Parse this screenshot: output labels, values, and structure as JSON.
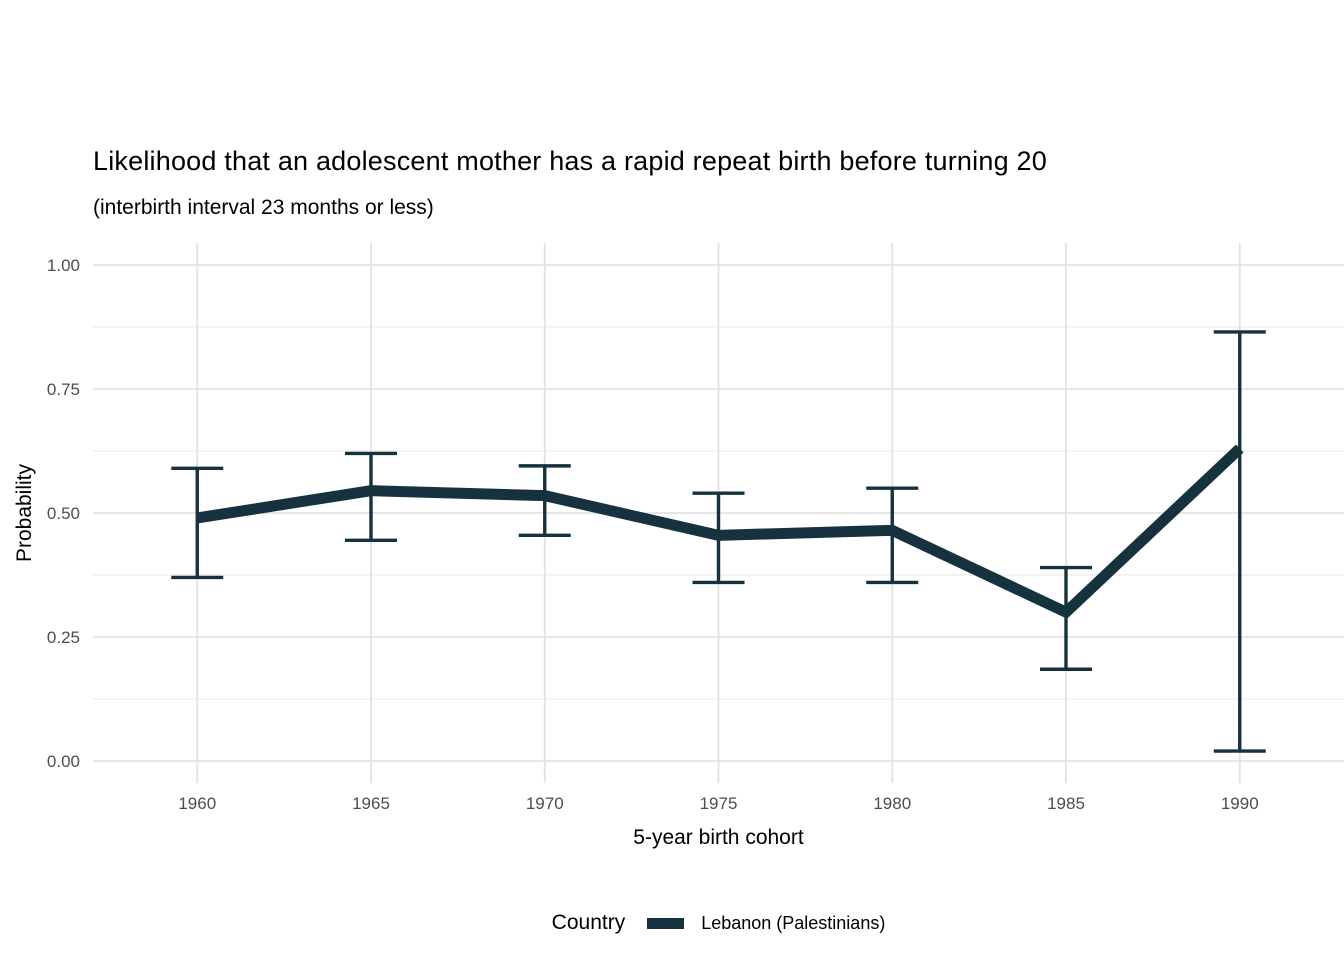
{
  "chart_data": {
    "type": "line",
    "title": "Likelihood that an adolescent mother has a rapid repeat birth before turning 20",
    "subtitle": "(interbirth interval 23 months or less)",
    "xlabel": "5-year birth cohort",
    "ylabel": "Probability",
    "categories": [
      "1960",
      "1965",
      "1970",
      "1975",
      "1980",
      "1985",
      "1990"
    ],
    "series": [
      {
        "name": "Lebanon (Palestinians)",
        "color": "#16323E",
        "values": [
          0.49,
          0.545,
          0.535,
          0.455,
          0.465,
          0.3,
          0.63
        ],
        "ci_low": [
          0.37,
          0.445,
          0.455,
          0.36,
          0.36,
          0.185,
          0.02
        ],
        "ci_high": [
          0.59,
          0.62,
          0.595,
          0.54,
          0.55,
          0.39,
          0.865
        ]
      }
    ],
    "ylim": [
      0,
      1
    ],
    "yticks_major": [
      0,
      0.25,
      0.5,
      0.75,
      1
    ],
    "yticks_minor": [
      0.125,
      0.375,
      0.625,
      0.875
    ],
    "ytick_labels": [
      "0.00",
      "0.25",
      "0.50",
      "0.75",
      "1.00"
    ],
    "grid": "major+minor, no axis lines (minimal theme)",
    "legend_position": "bottom",
    "legend_title": "Country",
    "error_bars": true
  },
  "colors": {
    "line": "#16323E",
    "grid_major": "#e2e2e2",
    "grid_minor": "#eeeeee",
    "tick_text": "#4d4d4d",
    "title_text": "#000000",
    "background": "#ffffff"
  }
}
